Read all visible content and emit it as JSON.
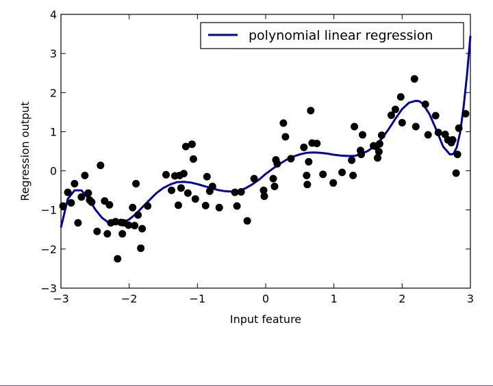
{
  "chart_data": {
    "type": "scatter",
    "xlabel": "Input feature",
    "ylabel": "Regression output",
    "xlim": [
      -3,
      3
    ],
    "ylim": [
      -3,
      4
    ],
    "xticks": [
      -3,
      -2,
      -1,
      0,
      1,
      2,
      3
    ],
    "yticks": [
      -3,
      -2,
      -1,
      0,
      1,
      2,
      3,
      4
    ],
    "xtick_labels": [
      "−3",
      "−2",
      "−1",
      "0",
      "1",
      "2",
      "3"
    ],
    "ytick_labels": [
      "−3",
      "−2",
      "−1",
      "0",
      "1",
      "2",
      "3",
      "4"
    ],
    "grid": false,
    "legend": {
      "placement": "top-right",
      "entries": [
        "polynomial linear regression"
      ]
    },
    "colors": {
      "line": "#0000a8",
      "points": "#000000",
      "axes": "#000000"
    },
    "series": [
      {
        "kind": "line",
        "name": "polynomial linear regression",
        "x": [
          -3.0,
          -2.9,
          -2.8,
          -2.7,
          -2.6,
          -2.5,
          -2.4,
          -2.3,
          -2.2,
          -2.1,
          -2.0,
          -1.9,
          -1.8,
          -1.7,
          -1.6,
          -1.5,
          -1.4,
          -1.3,
          -1.2,
          -1.1,
          -1.0,
          -0.9,
          -0.8,
          -0.7,
          -0.6,
          -0.5,
          -0.4,
          -0.3,
          -0.2,
          -0.1,
          0.0,
          0.1,
          0.2,
          0.3,
          0.4,
          0.5,
          0.6,
          0.7,
          0.8,
          0.9,
          1.0,
          1.1,
          1.2,
          1.3,
          1.4,
          1.5,
          1.6,
          1.7,
          1.8,
          1.9,
          2.0,
          2.1,
          2.2,
          2.25,
          2.3,
          2.4,
          2.5,
          2.6,
          2.7,
          2.75,
          2.8,
          2.85,
          2.9,
          2.95,
          3.0
        ],
        "y": [
          -1.45,
          -0.72,
          -0.5,
          -0.5,
          -0.7,
          -0.98,
          -1.2,
          -1.33,
          -1.36,
          -1.33,
          -1.24,
          -1.1,
          -0.92,
          -0.74,
          -0.57,
          -0.44,
          -0.35,
          -0.29,
          -0.28,
          -0.3,
          -0.34,
          -0.39,
          -0.44,
          -0.49,
          -0.52,
          -0.53,
          -0.51,
          -0.45,
          -0.35,
          -0.23,
          -0.08,
          0.05,
          0.17,
          0.28,
          0.36,
          0.42,
          0.46,
          0.47,
          0.46,
          0.44,
          0.41,
          0.39,
          0.38,
          0.38,
          0.43,
          0.51,
          0.64,
          0.82,
          1.06,
          1.33,
          1.58,
          1.74,
          1.79,
          1.78,
          1.72,
          1.45,
          1.05,
          0.62,
          0.42,
          0.43,
          0.6,
          0.98,
          1.62,
          2.45,
          3.45
        ]
      },
      {
        "kind": "scatter",
        "x": [
          -2.97,
          -2.9,
          -2.85,
          -2.8,
          -2.75,
          -2.7,
          -2.65,
          -2.6,
          -2.58,
          -2.55,
          -2.47,
          -2.42,
          -2.36,
          -2.32,
          -2.29,
          -2.27,
          -2.2,
          -2.17,
          -2.12,
          -2.1,
          -2.08,
          -2.01,
          -1.95,
          -1.92,
          -1.9,
          -1.87,
          -1.83,
          -1.81,
          -1.73,
          -1.46,
          -1.38,
          -1.33,
          -1.28,
          -1.26,
          -1.24,
          -1.2,
          -1.17,
          -1.14,
          -1.08,
          -1.06,
          -1.03,
          -0.88,
          -0.86,
          -0.82,
          -0.78,
          -0.68,
          -0.45,
          -0.42,
          -0.36,
          -0.27,
          -0.17,
          -0.03,
          -0.02,
          0.11,
          0.13,
          0.15,
          0.17,
          0.26,
          0.29,
          0.37,
          0.56,
          0.6,
          0.61,
          0.63,
          0.66,
          0.68,
          0.75,
          0.84,
          0.99,
          1.12,
          1.26,
          1.28,
          1.3,
          1.39,
          1.4,
          1.42,
          1.58,
          1.62,
          1.64,
          1.66,
          1.67,
          1.7,
          1.84,
          1.9,
          1.98,
          2.0,
          2.18,
          2.2,
          2.34,
          2.38,
          2.49,
          2.53,
          2.63,
          2.67,
          2.72,
          2.74,
          2.79,
          2.81,
          2.83,
          2.93
        ],
        "y": [
          -0.9,
          -0.55,
          -0.82,
          -0.33,
          -1.33,
          -0.67,
          -0.12,
          -0.57,
          -0.75,
          -0.8,
          -1.55,
          0.14,
          -0.77,
          -1.61,
          -0.87,
          -1.33,
          -1.3,
          -2.25,
          -1.32,
          -1.61,
          -1.33,
          -1.39,
          -0.94,
          -1.4,
          -0.33,
          -1.13,
          -1.98,
          -1.48,
          -0.9,
          -0.1,
          -0.5,
          -0.13,
          -0.88,
          -0.12,
          -0.44,
          -0.07,
          0.62,
          -0.57,
          0.68,
          0.3,
          -0.72,
          -0.89,
          -0.15,
          -0.52,
          -0.4,
          -0.94,
          -0.55,
          -0.9,
          -0.54,
          -1.28,
          -0.2,
          -0.5,
          -0.65,
          -0.2,
          -0.4,
          0.28,
          0.18,
          1.22,
          0.87,
          0.31,
          0.6,
          -0.12,
          -0.35,
          0.23,
          1.54,
          0.71,
          0.7,
          -0.09,
          -0.31,
          -0.04,
          0.27,
          -0.12,
          1.13,
          0.52,
          0.42,
          0.92,
          0.64,
          0.62,
          0.33,
          0.49,
          0.69,
          0.91,
          1.42,
          1.57,
          1.89,
          1.23,
          2.35,
          1.13,
          1.7,
          0.92,
          1.41,
          0.98,
          0.93,
          0.79,
          0.72,
          0.79,
          -0.06,
          0.42,
          1.09,
          1.46
        ]
      }
    ]
  }
}
